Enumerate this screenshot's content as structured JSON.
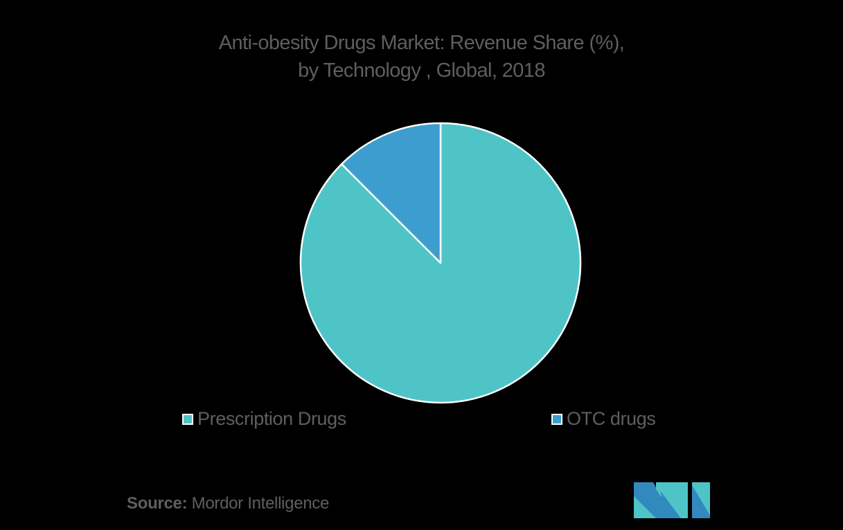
{
  "title": {
    "line1": "Anti-obesity Drugs Market: Revenue Share (%),",
    "line2": "by Technology , Global, 2018"
  },
  "legend": [
    {
      "label": "Prescription Drugs",
      "color": "#4fc4c7"
    },
    {
      "label": "OTC drugs",
      "color": "#3d9dce"
    }
  ],
  "source": {
    "label": "Source:",
    "value": "Mordor Intelligence"
  },
  "colors": {
    "background": "#000000",
    "text": "#5f5f5f",
    "stroke": "#ffffff",
    "logo_teal": "#4fc4c7",
    "logo_blue": "#3289bd"
  },
  "chart_data": {
    "type": "pie",
    "title": "Anti-obesity Drugs Market: Revenue Share (%), by Technology , Global, 2018",
    "categories": [
      "Prescription Drugs",
      "OTC drugs"
    ],
    "values": [
      87.5,
      12.5
    ],
    "unit": "%",
    "start_angle_deg": 0,
    "direction": "clockwise from 12 o'clock (Prescription first)",
    "legend_position": "bottom",
    "data_labels": false
  }
}
